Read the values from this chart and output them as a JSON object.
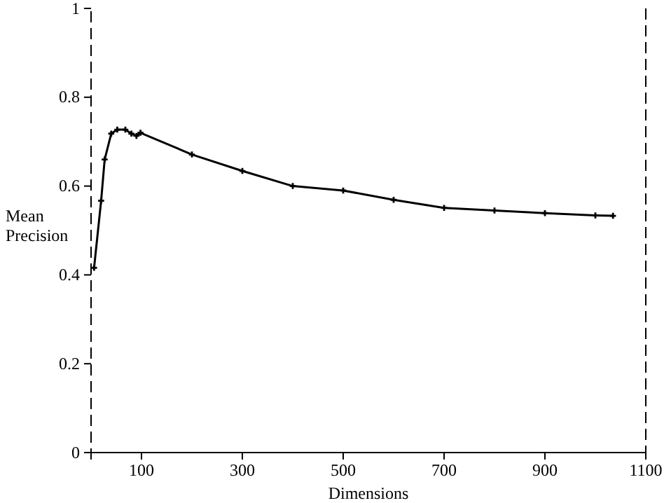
{
  "chart_data": {
    "type": "line",
    "xlabel": "Dimensions",
    "ylabel": "Mean\nPrecision",
    "x": [
      6,
      20,
      27,
      40,
      52,
      68,
      80,
      90,
      98,
      200,
      300,
      400,
      500,
      600,
      700,
      800,
      900,
      1000,
      1035
    ],
    "values": [
      0.416,
      0.567,
      0.66,
      0.718,
      0.727,
      0.727,
      0.718,
      0.713,
      0.72,
      0.671,
      0.634,
      0.6,
      0.59,
      0.569,
      0.551,
      0.545,
      0.539,
      0.534,
      0.533
    ],
    "color": "#000000",
    "marker": "cross",
    "line_style": "solid",
    "xlim": [
      0,
      1100
    ],
    "xticks": [
      100,
      300,
      500,
      700,
      900,
      1100
    ],
    "ylim": [
      0,
      1
    ],
    "yticks": [
      0,
      0.2,
      0.4,
      0.6,
      0.8,
      1
    ],
    "grid": false
  }
}
